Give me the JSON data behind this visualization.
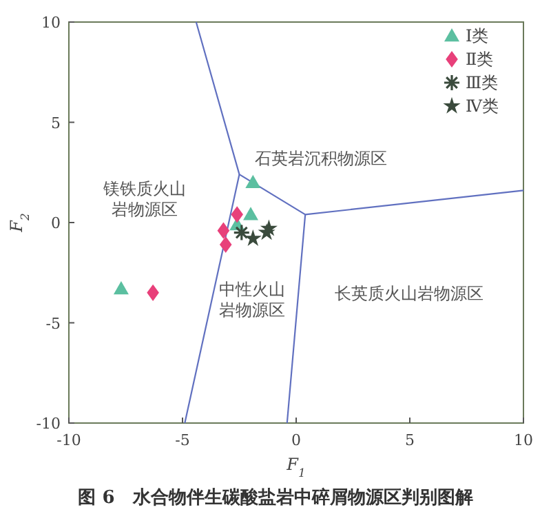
{
  "chart_data": {
    "type": "scatter",
    "title": "图 6　水合物伴生碳酸盐岩中碎屑物源区判别图解",
    "xlabel": "F$_{1}$",
    "ylabel": "F$_{2}$",
    "xlim": [
      -10,
      10
    ],
    "ylim": [
      -10,
      10
    ],
    "xticks": [
      -10,
      -5,
      0,
      5,
      10
    ],
    "yticks": [
      -10,
      -5,
      0,
      5,
      10
    ],
    "grid": false,
    "legend": "top right",
    "series": [
      {
        "name": "Ⅰ类",
        "color": "#5bbfa0",
        "marker": "triangle",
        "x": [
          -7.7,
          -1.9,
          -2.0,
          -2.6
        ],
        "values": [
          -3.3,
          2.0,
          0.4,
          -0.1
        ]
      },
      {
        "name": "Ⅱ类",
        "color": "#e8407a",
        "marker": "diamond",
        "x": [
          -6.3,
          -2.6,
          -3.2,
          -3.1
        ],
        "values": [
          -3.5,
          0.4,
          -0.4,
          -1.1
        ]
      },
      {
        "name": "Ⅲ类",
        "color": "#3a4a3c",
        "marker": "cross",
        "x": [
          -2.4
        ],
        "values": [
          -0.5
        ]
      },
      {
        "name": "Ⅳ类",
        "color": "#3a4a3c",
        "marker": "star",
        "x": [
          -1.9,
          -1.3,
          -1.2
        ],
        "values": [
          -0.8,
          -0.5,
          -0.3
        ]
      },
      {
        "type": "line",
        "color": "#6070c0",
        "marker": "none",
        "x": [
          -4.4,
          -2.5,
          0.4,
          10
        ],
        "values": [
          10,
          2.4,
          0.4,
          1.6
        ]
      },
      {
        "type": "line",
        "color": "#6070c0",
        "marker": "none",
        "x": [
          -2.5,
          -4.9
        ],
        "values": [
          2.4,
          -10
        ]
      },
      {
        "type": "line",
        "color": "#6070c0",
        "marker": "none",
        "x": [
          0.4,
          -0.4
        ],
        "values": [
          0.4,
          -10
        ]
      }
    ],
    "annotations": [
      "石英岩沉积物源区",
      "镁铁质火山岩物源区",
      "中性火山岩物源区",
      "长英质火山岩物源区"
    ]
  }
}
